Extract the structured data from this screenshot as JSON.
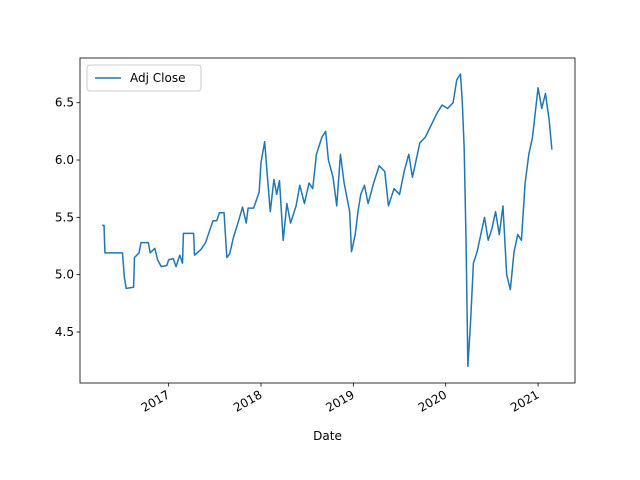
{
  "chart_data": {
    "type": "line",
    "x_label": "Date",
    "x": [
      2016.28,
      2016.3,
      2016.31,
      2016.5,
      2016.52,
      2016.54,
      2016.62,
      2016.63,
      2016.68,
      2016.7,
      2016.78,
      2016.8,
      2016.85,
      2016.88,
      2016.92,
      2016.98,
      2017.0,
      2017.05,
      2017.08,
      2017.12,
      2017.15,
      2017.16,
      2017.27,
      2017.28,
      2017.35,
      2017.4,
      2017.45,
      2017.48,
      2017.52,
      2017.55,
      2017.6,
      2017.63,
      2017.66,
      2017.7,
      2017.75,
      2017.8,
      2017.84,
      2017.86,
      2017.92,
      2017.98,
      2018.0,
      2018.04,
      2018.06,
      2018.1,
      2018.14,
      2018.17,
      2018.2,
      2018.24,
      2018.28,
      2018.32,
      2018.38,
      2018.42,
      2018.47,
      2018.52,
      2018.56,
      2018.6,
      2018.66,
      2018.7,
      2018.73,
      2018.78,
      2018.82,
      2018.86,
      2018.9,
      2018.96,
      2018.98,
      2019.02,
      2019.05,
      2019.08,
      2019.12,
      2019.16,
      2019.22,
      2019.28,
      2019.34,
      2019.38,
      2019.44,
      2019.5,
      2019.55,
      2019.6,
      2019.64,
      2019.68,
      2019.72,
      2019.78,
      2019.84,
      2019.9,
      2019.96,
      2020.02,
      2020.08,
      2020.12,
      2020.16,
      2020.18,
      2020.2,
      2020.22,
      2020.24,
      2020.27,
      2020.3,
      2020.34,
      2020.38,
      2020.42,
      2020.46,
      2020.5,
      2020.54,
      2020.58,
      2020.62,
      2020.66,
      2020.7,
      2020.74,
      2020.78,
      2020.82,
      2020.86,
      2020.9,
      2020.94,
      2021.0,
      2021.04,
      2021.08,
      2021.12,
      2021.15
    ],
    "series": [
      {
        "name": "Adj Close",
        "color": "#1f77b4",
        "values": [
          5.43,
          5.43,
          5.19,
          5.19,
          4.98,
          4.88,
          4.89,
          5.15,
          5.19,
          5.28,
          5.28,
          5.19,
          5.23,
          5.13,
          5.07,
          5.08,
          5.13,
          5.14,
          5.07,
          5.17,
          5.1,
          5.36,
          5.36,
          5.17,
          5.22,
          5.28,
          5.4,
          5.47,
          5.47,
          5.54,
          5.54,
          5.15,
          5.18,
          5.32,
          5.45,
          5.59,
          5.45,
          5.58,
          5.58,
          5.72,
          5.98,
          6.16,
          5.95,
          5.55,
          5.83,
          5.7,
          5.82,
          5.3,
          5.62,
          5.45,
          5.6,
          5.78,
          5.62,
          5.8,
          5.75,
          6.05,
          6.2,
          6.25,
          6.0,
          5.85,
          5.6,
          6.05,
          5.8,
          5.55,
          5.2,
          5.35,
          5.55,
          5.7,
          5.78,
          5.62,
          5.8,
          5.95,
          5.9,
          5.6,
          5.75,
          5.7,
          5.9,
          6.05,
          5.85,
          6.0,
          6.15,
          6.2,
          6.3,
          6.4,
          6.48,
          6.45,
          6.5,
          6.7,
          6.75,
          6.5,
          6.1,
          5.3,
          4.2,
          4.6,
          5.1,
          5.2,
          5.35,
          5.5,
          5.3,
          5.4,
          5.55,
          5.35,
          5.6,
          5.0,
          4.87,
          5.2,
          5.35,
          5.3,
          5.8,
          6.05,
          6.2,
          6.63,
          6.45,
          6.58,
          6.35,
          6.09
        ]
      }
    ],
    "xlim": [
      2016.04,
      2021.4
    ],
    "xticks": [
      2017,
      2018,
      2019,
      2020,
      2021
    ],
    "ylim": [
      4.055,
      6.89
    ],
    "yticks": [
      4.5,
      {
        "value": 5.0,
        "label": "5.0"
      },
      5.5,
      {
        "value": 6.0,
        "label": "6.0"
      },
      6.5
    ],
    "legend": "upper left",
    "grid": false
  }
}
